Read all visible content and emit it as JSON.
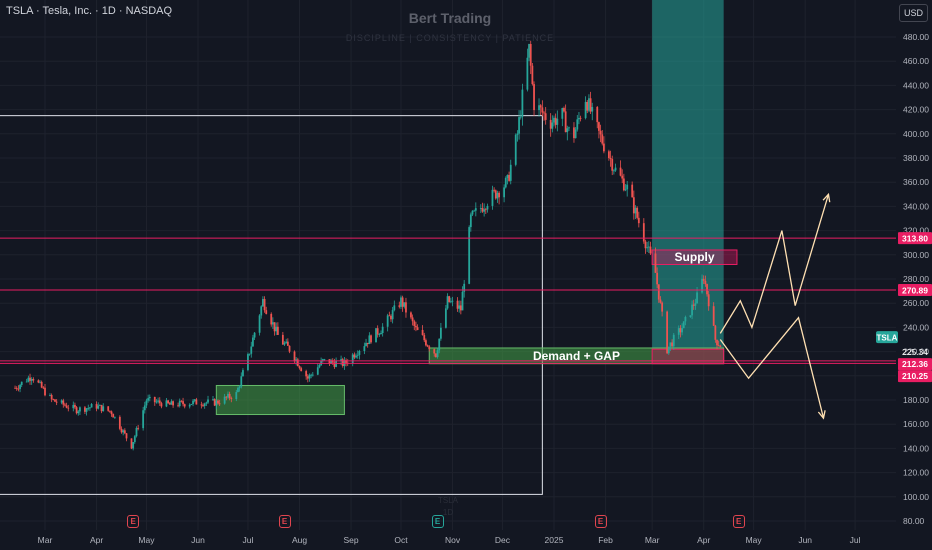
{
  "header": {
    "symbol_line": "TSLA · Tesla, Inc. · 1D · NASDAQ",
    "brand_title": "Bert Trading",
    "brand_subtitle": "DISCIPLINE | CONSISTENCY | PATIENCE",
    "currency": "USD"
  },
  "watermarks": [
    "TSLA",
    "1D"
  ],
  "earnings_icon_label": "E",
  "dividend_icon_label": "E",
  "colors": {
    "background": "#131722",
    "grid": "#1e222d",
    "axis_text": "#b2b5be",
    "candle_up": "#26a69a",
    "candle_down": "#ef5350",
    "level_line": "#e91e63",
    "supply_fill": "#c2185b",
    "demand_fill": "#43a047",
    "projection": "#ffe0b2",
    "highlight_column": "#26a69a",
    "earnings_icon": "#e0454f"
  },
  "chart_data": {
    "type": "candlestick",
    "symbol": "TSLA",
    "timeframe": "1D",
    "y_axis": {
      "ylim": [
        80,
        500
      ],
      "ticks": [
        80,
        100,
        120,
        140,
        160,
        180,
        200,
        220,
        240,
        260,
        280,
        300,
        320,
        340,
        360,
        380,
        400,
        420,
        440,
        460,
        480
      ],
      "tick_labels": [
        "80.00",
        "100.00",
        "120.00",
        "140.00",
        "160.00",
        "180.00",
        "200.00",
        "220.00",
        "240.00",
        "260.00",
        "280.00",
        "300.00",
        "320.00",
        "340.00",
        "360.00",
        "380.00",
        "400.00",
        "420.00",
        "440.00",
        "460.00",
        "480.00"
      ]
    },
    "x_axis": {
      "ticks": [
        "2024-03-01",
        "2024-04-01",
        "2024-05-01",
        "2024-06-01",
        "2024-07-01",
        "2024-08-01",
        "2024-09-01",
        "2024-10-01",
        "2024-11-01",
        "2024-12-01",
        "2025-01-01",
        "2025-02-01",
        "2025-03-01",
        "2025-04-01",
        "2025-05-01",
        "2025-06-01",
        "2025-07-01"
      ],
      "tick_labels": [
        "Mar",
        "Apr",
        "May",
        "Jun",
        "Jul",
        "Aug",
        "Sep",
        "Oct",
        "Nov",
        "Dec",
        "2025",
        "Feb",
        "Mar",
        "Apr",
        "May",
        "Jun",
        "Jul"
      ]
    },
    "price_series": [
      [
        "2024-02-12",
        190
      ],
      [
        "2024-02-22",
        200
      ],
      [
        "2024-03-05",
        180
      ],
      [
        "2024-03-20",
        172
      ],
      [
        "2024-04-01",
        175
      ],
      [
        "2024-04-10",
        170
      ],
      [
        "2024-04-22",
        142
      ],
      [
        "2024-05-01",
        180
      ],
      [
        "2024-05-15",
        176
      ],
      [
        "2024-05-30",
        178
      ],
      [
        "2024-06-12",
        178
      ],
      [
        "2024-06-24",
        185
      ],
      [
        "2024-07-01",
        215
      ],
      [
        "2024-07-10",
        262
      ],
      [
        "2024-07-20",
        230
      ],
      [
        "2024-07-26",
        222
      ],
      [
        "2024-08-06",
        198
      ],
      [
        "2024-08-15",
        212
      ],
      [
        "2024-08-28",
        210
      ],
      [
        "2024-09-10",
        228
      ],
      [
        "2024-09-20",
        240
      ],
      [
        "2024-10-01",
        262
      ],
      [
        "2024-10-10",
        238
      ],
      [
        "2024-10-22",
        218
      ],
      [
        "2024-10-29",
        262
      ],
      [
        "2024-11-06",
        255
      ],
      [
        "2024-11-12",
        330
      ],
      [
        "2024-11-22",
        345
      ],
      [
        "2024-12-04",
        360
      ],
      [
        "2024-12-10",
        400
      ],
      [
        "2024-12-17",
        470
      ],
      [
        "2024-12-20",
        425
      ],
      [
        "2024-12-30",
        410
      ],
      [
        "2025-01-06",
        415
      ],
      [
        "2025-01-12",
        395
      ],
      [
        "2025-01-20",
        430
      ],
      [
        "2025-01-28",
        400
      ],
      [
        "2025-02-07",
        370
      ],
      [
        "2025-02-14",
        355
      ],
      [
        "2025-02-24",
        315
      ],
      [
        "2025-03-03",
        285
      ],
      [
        "2025-03-10",
        222
      ],
      [
        "2025-03-20",
        242
      ],
      [
        "2025-03-28",
        265
      ],
      [
        "2025-04-01",
        282
      ],
      [
        "2025-04-04",
        262
      ],
      [
        "2025-04-08",
        230
      ],
      [
        "2025-04-11",
        225.34
      ]
    ],
    "last_price": 225.34,
    "levels": [
      313.8,
      270.89,
      212.36,
      210.25
    ],
    "level_labels": [
      "313.80",
      "270.89",
      "212.36",
      "210.25"
    ],
    "last_price_label": "225.34",
    "symbol_label": "TSLA",
    "zones": [
      {
        "label": "Supply",
        "from": "2025-03-01",
        "to": "2025-04-21",
        "low": 292,
        "high": 304
      },
      {
        "label": "Demand + GAP",
        "from": "2024-10-18",
        "to": "2025-04-13",
        "low": 210,
        "high": 223
      },
      {
        "label": "",
        "from": "2024-06-12",
        "to": "2024-08-28",
        "low": 168,
        "high": 192
      },
      {
        "label": "",
        "from": "2025-03-01",
        "to": "2025-04-13",
        "low": 210,
        "high": 222
      }
    ],
    "frame": {
      "from": "2024-02-01",
      "to": "2024-12-25",
      "low": 102,
      "high": 415
    },
    "highlight_column": {
      "from": "2025-03-01",
      "to": "2025-04-13"
    },
    "projection_paths": [
      [
        [
          "2025-04-11",
          235
        ],
        [
          "2025-04-23",
          262
        ],
        [
          "2025-04-30",
          240
        ],
        [
          "2025-05-18",
          320
        ],
        [
          "2025-05-26",
          258
        ],
        [
          "2025-06-15",
          350
        ]
      ],
      [
        [
          "2025-04-11",
          230
        ],
        [
          "2025-04-28",
          198
        ],
        [
          "2025-05-28",
          248
        ],
        [
          "2025-06-12",
          165
        ]
      ]
    ],
    "earnings_dates": [
      "2024-04-23",
      "2024-07-23",
      "2025-01-29",
      "2025-04-22"
    ],
    "dividend_dates": [
      "2024-10-23"
    ]
  }
}
